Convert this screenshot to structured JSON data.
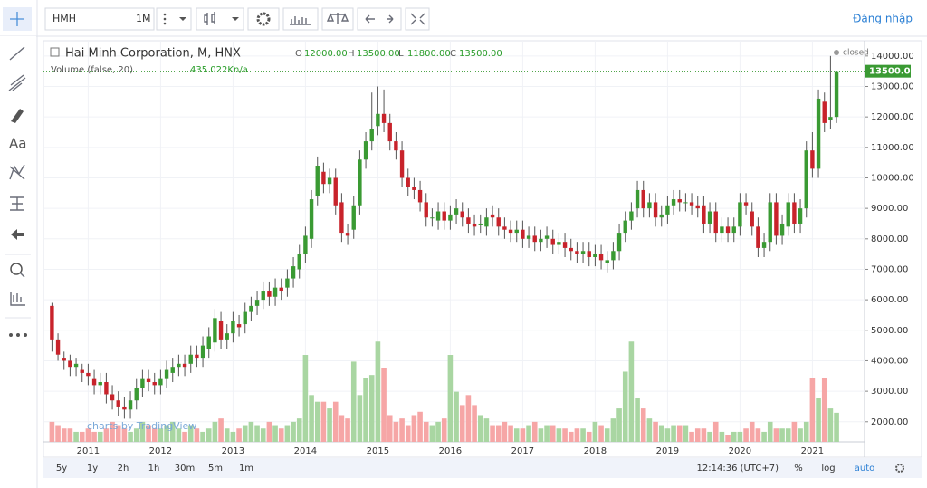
{
  "toolbar": {
    "symbol": "HMH",
    "interval": "1M",
    "login": "Đăng nhập",
    "text_tool": "Aa"
  },
  "legend": {
    "title": "Hai Minh Corporation, M, HNX",
    "ohlc": [
      {
        "key": "O",
        "value": "12000.00"
      },
      {
        "key": "H",
        "value": "13500.00"
      },
      {
        "key": "L",
        "value": "11800.00"
      },
      {
        "key": "C",
        "value": "13500.00"
      }
    ],
    "volume_title": "Volume (false, 20)",
    "volume_value": "435.022K",
    "volume_extra": "n/a",
    "status": "closed",
    "watermark": "charts by TradingView"
  },
  "chart_data": {
    "type": "candlestick",
    "categories": [
      null,
      null,
      null,
      null,
      null,
      null,
      "2011",
      null,
      null,
      null,
      null,
      null,
      null,
      null,
      null,
      null,
      null,
      null,
      "2012",
      null,
      null,
      null,
      null,
      null,
      null,
      null,
      null,
      null,
      null,
      null,
      "2013",
      null,
      null,
      null,
      null,
      null,
      null,
      null,
      null,
      null,
      null,
      null,
      "2014",
      null,
      null,
      null,
      null,
      null,
      null,
      null,
      null,
      null,
      null,
      null,
      "2015",
      null,
      null,
      null,
      null,
      null,
      null,
      null,
      null,
      null,
      null,
      null,
      "2016",
      null,
      null,
      null,
      null,
      null,
      null,
      null,
      null,
      null,
      null,
      null,
      "2017",
      null,
      null,
      null,
      null,
      null,
      null,
      null,
      null,
      null,
      null,
      null,
      "2018",
      null,
      null,
      null,
      null,
      null,
      null,
      null,
      null,
      null,
      null,
      null,
      "2019",
      null,
      null,
      null,
      null,
      null,
      null,
      null,
      null,
      null,
      null,
      null,
      "2020",
      null,
      null,
      null,
      null,
      null,
      null,
      null,
      null,
      null,
      null,
      null,
      "2021",
      null,
      null,
      null,
      null
    ],
    "open": [
      5800,
      4700,
      4100,
      4000,
      3800,
      3700,
      3600,
      3400,
      3200,
      3300,
      2900,
      2700,
      2500,
      2400,
      2700,
      3100,
      3400,
      3300,
      3200,
      3400,
      3600,
      3800,
      3900,
      3900,
      4200,
      4100,
      4400,
      4600,
      5300,
      4700,
      4900,
      5200,
      5200,
      5600,
      5800,
      6000,
      6300,
      6100,
      6400,
      6400,
      6700,
      7000,
      7500,
      8000,
      9400,
      10200,
      9800,
      10000,
      9200,
      8200,
      8300,
      9100,
      10600,
      11200,
      11700,
      12100,
      11800,
      11200,
      10900,
      10000,
      9700,
      9600,
      9200,
      8700,
      8600,
      8900,
      8600,
      8800,
      8900,
      8700,
      8500,
      8500,
      8400,
      8800,
      8700,
      8400,
      8300,
      8200,
      8300,
      8000,
      8100,
      7900,
      8000,
      8000,
      7800,
      7900,
      7700,
      7600,
      7500,
      7600,
      7400,
      7500,
      7200,
      7300,
      7600,
      8200,
      8600,
      9000,
      9600,
      9000,
      9200,
      8700,
      8800,
      9100,
      9300,
      9200,
      9200,
      9100,
      9100,
      8500,
      8900,
      8200,
      8400,
      8200,
      8400,
      9200,
      8900,
      8400,
      7700,
      7900,
      9200,
      8100,
      8400,
      9200,
      8500,
      9000,
      10900,
      10300,
      12500,
      11900,
      12000
    ],
    "high": [
      5900,
      4900,
      4300,
      4200,
      4100,
      3900,
      3900,
      3700,
      3600,
      3600,
      3200,
      3000,
      2800,
      3000,
      3400,
      3700,
      3700,
      3600,
      3700,
      4000,
      4100,
      4200,
      4200,
      4500,
      4500,
      4800,
      5100,
      5700,
      5600,
      5200,
      5600,
      5500,
      5900,
      6100,
      6300,
      6600,
      6600,
      6700,
      6700,
      7000,
      7400,
      7800,
      8400,
      9600,
      10700,
      10500,
      10300,
      10300,
      9500,
      8500,
      9400,
      10900,
      11500,
      12800,
      13000,
      12900,
      12100,
      11500,
      11200,
      10300,
      10000,
      9900,
      9500,
      9000,
      9200,
      9200,
      9100,
      9300,
      9200,
      9000,
      8800,
      8800,
      9000,
      9100,
      9000,
      8700,
      8600,
      8600,
      8600,
      8400,
      8400,
      8300,
      8400,
      8300,
      8200,
      8200,
      8000,
      7900,
      7900,
      7900,
      7800,
      7800,
      7600,
      7900,
      8500,
      8900,
      9200,
      9900,
      9900,
      9500,
      9500,
      9100,
      9400,
      9600,
      9600,
      9500,
      9500,
      9400,
      9400,
      9200,
      9200,
      8700,
      8700,
      8700,
      9500,
      9500,
      9200,
      8700,
      8200,
      9500,
      9500,
      8800,
      9500,
      9500,
      9300,
      11200,
      11500,
      12900,
      12800,
      14000,
      13500
    ],
    "low": [
      4300,
      4000,
      3700,
      3500,
      3500,
      3300,
      3200,
      2900,
      2900,
      2600,
      2400,
      2200,
      2100,
      2100,
      2400,
      2800,
      3000,
      2900,
      2900,
      3100,
      3300,
      3500,
      3500,
      3600,
      3800,
      3800,
      4100,
      4300,
      4400,
      4400,
      4600,
      4800,
      4900,
      5300,
      5500,
      5700,
      5800,
      5800,
      6000,
      6100,
      6400,
      6700,
      7200,
      7700,
      9100,
      9500,
      9500,
      8800,
      7900,
      7800,
      8000,
      8800,
      10300,
      10900,
      11400,
      11500,
      10900,
      10600,
      9700,
      9400,
      9300,
      8900,
      8400,
      8400,
      8300,
      8300,
      8300,
      8500,
      8400,
      8200,
      8100,
      8200,
      8100,
      8400,
      8100,
      8000,
      7900,
      7900,
      7700,
      7700,
      7600,
      7600,
      7700,
      7500,
      7500,
      7400,
      7300,
      7200,
      7200,
      7100,
      7100,
      7000,
      6900,
      7000,
      7300,
      7900,
      8300,
      8700,
      8700,
      8700,
      8400,
      8400,
      8500,
      8800,
      8900,
      8900,
      8800,
      8700,
      8200,
      8200,
      7900,
      7900,
      7900,
      7900,
      8100,
      8800,
      8100,
      7400,
      7400,
      7600,
      7800,
      7800,
      8100,
      8200,
      8200,
      8700,
      10000,
      10000,
      11500,
      11600,
      11800
    ],
    "close": [
      4700,
      4200,
      4000,
      3800,
      3900,
      3600,
      3500,
      3200,
      3300,
      2900,
      2700,
      2500,
      2400,
      2700,
      3100,
      3400,
      3300,
      3200,
      3400,
      3700,
      3800,
      3900,
      3800,
      4200,
      4100,
      4500,
      4800,
      5400,
      4700,
      4900,
      5300,
      5100,
      5600,
      5800,
      6000,
      6300,
      6100,
      6400,
      6300,
      6700,
      7100,
      7500,
      8100,
      9300,
      10400,
      9800,
      10000,
      9100,
      8200,
      8100,
      9100,
      10600,
      11200,
      11600,
      12100,
      11800,
      11200,
      10900,
      10000,
      9700,
      9600,
      9200,
      8700,
      8700,
      8900,
      8600,
      8800,
      9000,
      8700,
      8500,
      8400,
      8500,
      8700,
      8700,
      8400,
      8300,
      8200,
      8300,
      8000,
      8100,
      7900,
      8000,
      8100,
      7800,
      7900,
      7700,
      7600,
      7500,
      7600,
      7400,
      7500,
      7300,
      7300,
      7600,
      8200,
      8600,
      8900,
      9600,
      9000,
      9200,
      8700,
      8800,
      9100,
      9300,
      9200,
      9200,
      9100,
      9000,
      8500,
      8900,
      8200,
      8400,
      8200,
      8400,
      9200,
      9100,
      8400,
      7700,
      7900,
      9200,
      8100,
      8500,
      9200,
      8500,
      9000,
      10900,
      10300,
      12600,
      11800,
      12000,
      13500
    ],
    "volume": {
      "axis": "y2",
      "values": [
        300,
        250,
        200,
        200,
        150,
        150,
        200,
        150,
        150,
        200,
        300,
        250,
        200,
        150,
        200,
        300,
        250,
        200,
        200,
        250,
        300,
        200,
        150,
        250,
        200,
        150,
        200,
        300,
        350,
        200,
        150,
        200,
        250,
        300,
        250,
        200,
        300,
        250,
        200,
        250,
        300,
        350,
        1300,
        700,
        600,
        600,
        500,
        600,
        400,
        350,
        1200,
        700,
        950,
        1000,
        1500,
        1100,
        400,
        300,
        350,
        250,
        400,
        450,
        300,
        250,
        300,
        350,
        1300,
        750,
        550,
        700,
        550,
        400,
        350,
        250,
        250,
        300,
        250,
        200,
        200,
        250,
        300,
        200,
        250,
        250,
        200,
        200,
        150,
        200,
        200,
        150,
        300,
        250,
        200,
        350,
        500,
        1050,
        1500,
        650,
        500,
        350,
        300,
        250,
        200,
        250,
        250,
        250,
        150,
        200,
        200,
        150,
        300,
        150,
        100,
        150,
        150,
        200,
        300,
        200,
        150,
        300,
        200,
        200,
        200,
        300,
        200,
        300,
        950,
        650,
        950,
        500,
        435.022
      ]
    },
    "up_color": "#3a9a33",
    "down_color": "#c8232b",
    "volume_up_color": "#a9d6a2",
    "volume_down_color": "#f6a6a6",
    "ylim": [
      1340,
      14500
    ],
    "y2lim": [
      0,
      6000
    ],
    "grid": true,
    "yticks": [
      {
        "value": 2000,
        "label": "2000.00"
      },
      {
        "value": 3000,
        "label": "3000.00"
      },
      {
        "value": 4000,
        "label": "4000.00"
      },
      {
        "value": 5000,
        "label": "5000.00"
      },
      {
        "value": 6000,
        "label": "6000.00"
      },
      {
        "value": 7000,
        "label": "7000.00"
      },
      {
        "value": 8000,
        "label": "8000.00"
      },
      {
        "value": 9000,
        "label": "9000.00"
      },
      {
        "value": 10000,
        "label": "10000.00"
      },
      {
        "value": 11000,
        "label": "11000.00"
      },
      {
        "value": 12000,
        "label": "12000.00"
      },
      {
        "value": 13000,
        "label": "13000.00"
      },
      {
        "value": 14000,
        "label": "14000.00"
      }
    ],
    "last_price_label": "13500.00"
  },
  "bottom_bar": {
    "ranges": [
      "5y",
      "1y",
      "2h",
      "1h",
      "30m",
      "5m",
      "1m"
    ],
    "time": "12:14:36 (UTC+7)",
    "options": [
      "%",
      "log",
      "auto"
    ]
  }
}
